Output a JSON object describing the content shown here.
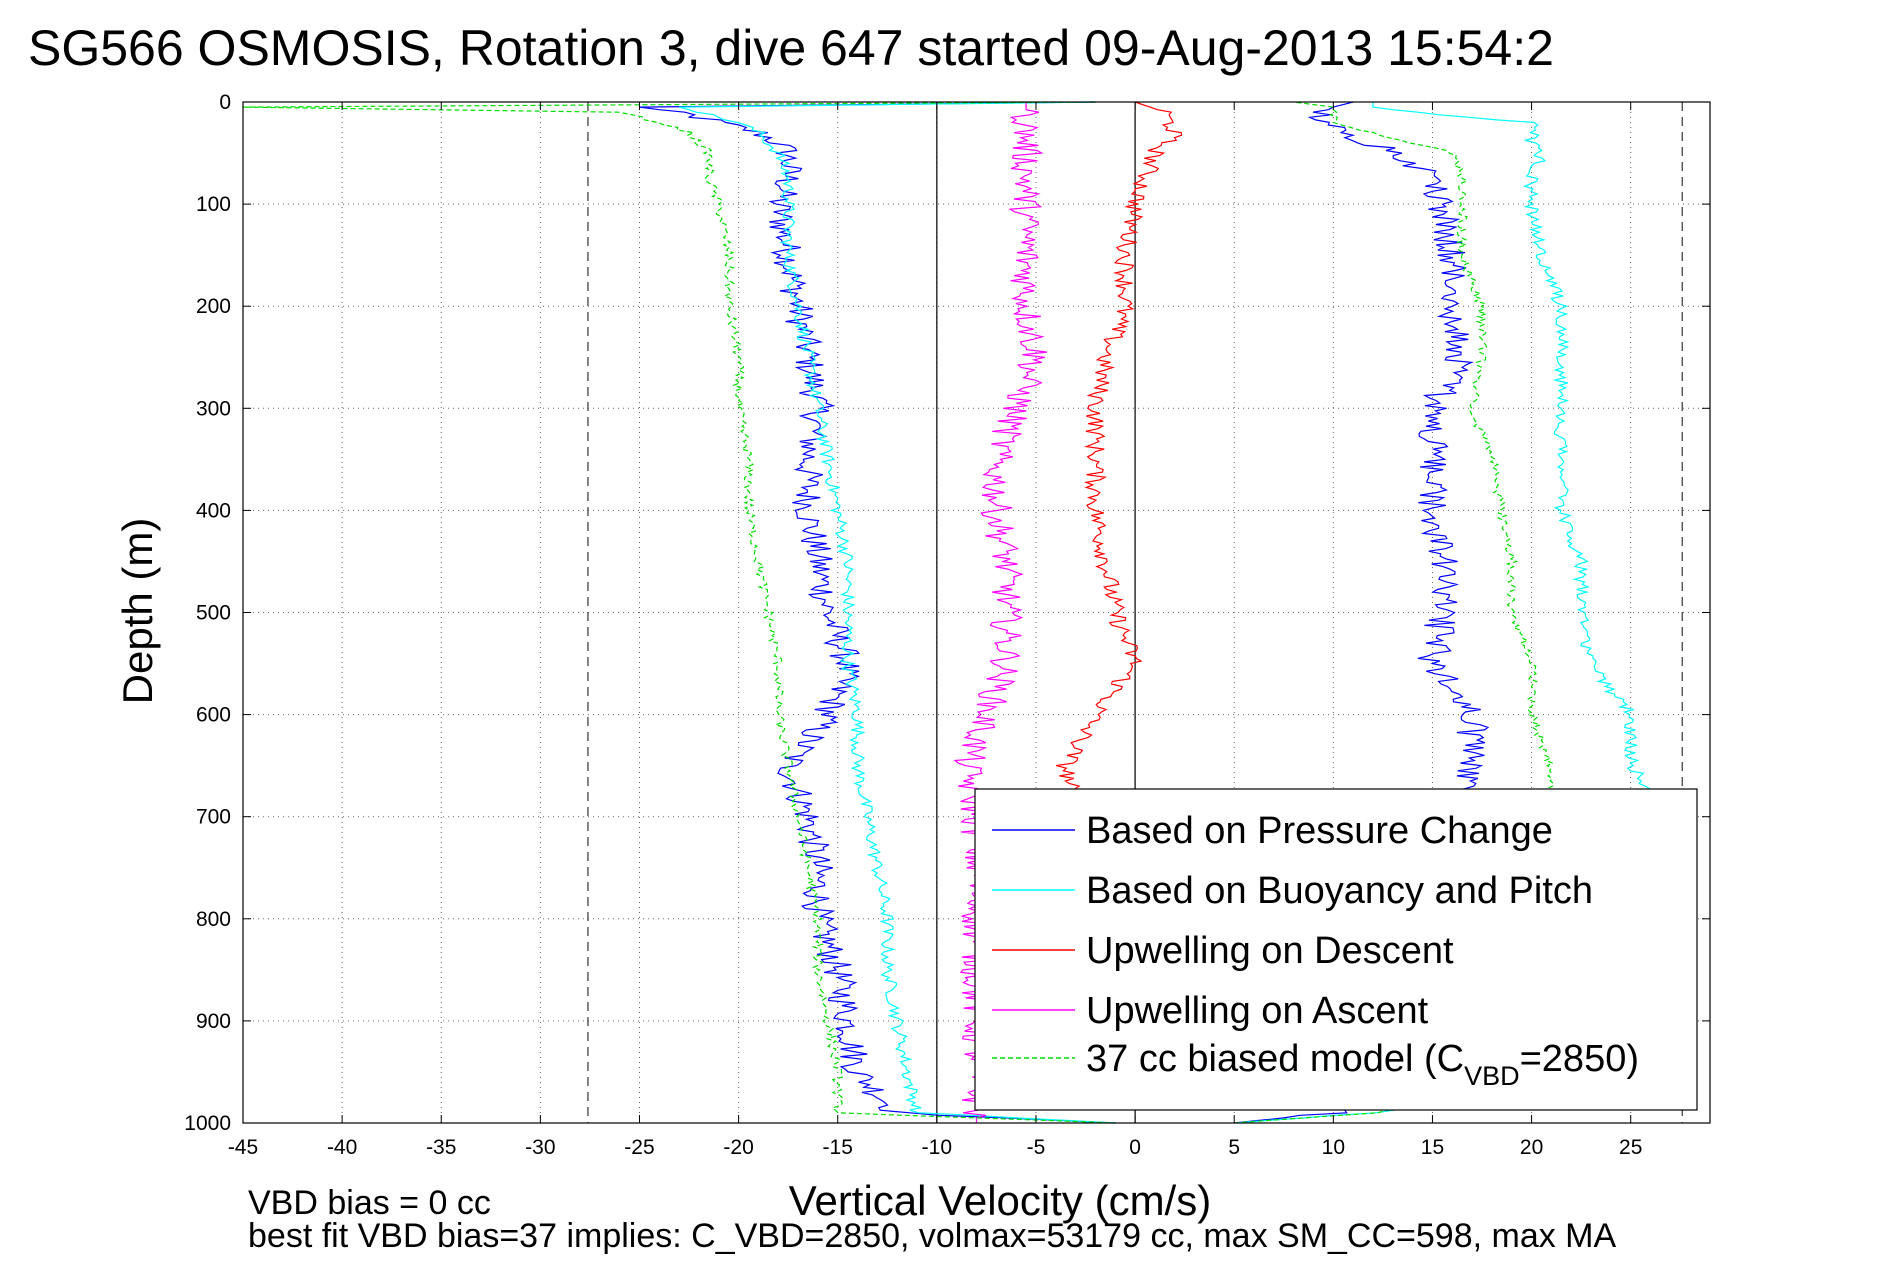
{
  "chart_data": {
    "type": "line",
    "title": "SG566 OSMOSIS, Rotation 3, dive 647 started 09-Aug-2013 15:54:2",
    "xlabel": "Vertical Velocity (cm/s)",
    "ylabel": "Depth (m)",
    "xlim": [
      -45,
      29
    ],
    "ylim": [
      1000,
      0
    ],
    "y_reversed": true,
    "xticks": [
      -45,
      -40,
      -35,
      -30,
      -25,
      -20,
      -15,
      -10,
      -5,
      0,
      5,
      10,
      15,
      20,
      25
    ],
    "yticks": [
      0,
      100,
      200,
      300,
      400,
      500,
      600,
      700,
      800,
      900,
      1000
    ],
    "grid": true,
    "legend_position": "bottom-right",
    "reference_lines": {
      "dashed_x": [
        -27.6,
        27.6
      ],
      "solid_x": [
        -10,
        0
      ]
    },
    "series": [
      {
        "name": "Based on Pressure Change",
        "color": "#0000ff",
        "style": "solid",
        "descent": {
          "depth": [
            0,
            5,
            10,
            20,
            30,
            40,
            50,
            75,
            100,
            150,
            200,
            250,
            300,
            350,
            400,
            450,
            500,
            550,
            600,
            650,
            700,
            750,
            800,
            850,
            900,
            950,
            990,
            1000
          ],
          "v": [
            -2,
            -25,
            -23,
            -21,
            -19,
            -18,
            -17.5,
            -17.5,
            -18,
            -17.5,
            -17,
            -16.5,
            -16,
            -16.5,
            -16.5,
            -16,
            -15.5,
            -14.5,
            -15.5,
            -17.5,
            -16.5,
            -16,
            -16,
            -15,
            -14.5,
            -14,
            -12,
            -1
          ]
        },
        "ascent": {
          "depth": [
            1000,
            990,
            950,
            900,
            850,
            800,
            750,
            700,
            650,
            600,
            550,
            500,
            450,
            400,
            350,
            300,
            250,
            200,
            150,
            100,
            75,
            50,
            40,
            30,
            20,
            10,
            5,
            0
          ],
          "v": [
            5,
            10,
            12,
            12.5,
            13,
            14,
            15,
            16,
            17,
            17,
            15,
            15.5,
            15.5,
            15,
            15,
            15,
            16.5,
            16,
            16,
            15.5,
            15,
            13.5,
            12,
            10.5,
            9.5,
            9.5,
            10,
            11
          ]
        }
      },
      {
        "name": "Based on Buoyancy and Pitch",
        "color": "#00ffff",
        "style": "solid",
        "descent": {
          "depth": [
            0,
            5,
            10,
            20,
            30,
            40,
            50,
            75,
            100,
            150,
            200,
            250,
            300,
            350,
            400,
            450,
            500,
            550,
            600,
            650,
            700,
            750,
            800,
            850,
            900,
            950,
            990,
            1000
          ],
          "v": [
            -2,
            -23,
            -22,
            -20,
            -19,
            -18.5,
            -18,
            -17.5,
            -17.5,
            -17.5,
            -17,
            -16.5,
            -16,
            -15.5,
            -15,
            -14.5,
            -14.5,
            -14.5,
            -14,
            -14,
            -13.5,
            -13,
            -12.5,
            -12.5,
            -12,
            -11.5,
            -11,
            -1
          ]
        },
        "ascent": {
          "depth": [
            1000,
            990,
            950,
            900,
            850,
            800,
            750,
            700,
            650,
            600,
            550,
            500,
            450,
            400,
            350,
            300,
            250,
            200,
            150,
            100,
            75,
            50,
            40,
            30,
            20,
            10,
            5,
            0
          ],
          "v": [
            5,
            12,
            27,
            27,
            27,
            27,
            27,
            27,
            25,
            25,
            23,
            22.5,
            22.5,
            21.5,
            21.5,
            21.5,
            21.5,
            21.5,
            20.5,
            20,
            20,
            20.5,
            20,
            20,
            20,
            14,
            12,
            12
          ]
        }
      },
      {
        "name": "Upwelling on Descent",
        "color": "#ff0000",
        "style": "solid",
        "descent": {
          "depth": [
            0,
            10,
            30,
            50,
            75,
            100,
            150,
            200,
            250,
            300,
            350,
            400,
            450,
            500,
            550,
            600,
            650,
            700,
            750,
            800
          ],
          "v": [
            0,
            1.5,
            2,
            1,
            0.5,
            0,
            -0.5,
            -0.5,
            -1.5,
            -2,
            -2,
            -2,
            -1.5,
            -1,
            0,
            -2,
            -3.5,
            -3,
            -3,
            -3
          ]
        }
      },
      {
        "name": "Upwelling on Ascent",
        "color": "#ff00ff",
        "style": "solid",
        "ascent": {
          "depth": [
            0,
            50,
            100,
            150,
            200,
            250,
            300,
            350,
            400,
            450,
            500,
            550,
            600,
            650,
            700,
            750,
            800,
            850,
            900,
            950,
            1000
          ],
          "v": [
            -5.5,
            -5.5,
            -5.5,
            -5.5,
            -5.5,
            -5,
            -6,
            -7,
            -7,
            -6.5,
            -6.5,
            -6.5,
            -7.5,
            -8.5,
            -8,
            -8,
            -8,
            -8,
            -8,
            -8,
            -8
          ]
        }
      },
      {
        "name": "37 cc biased model (C_VBD=2850)",
        "color": "#00dd00",
        "style": "dashed",
        "descent": {
          "depth": [
            0,
            5,
            10,
            20,
            30,
            40,
            50,
            75,
            100,
            150,
            200,
            250,
            300,
            350,
            400,
            450,
            500,
            550,
            600,
            650,
            700,
            750,
            800,
            850,
            900,
            950,
            990,
            1000
          ],
          "v": [
            -2,
            -45,
            -26,
            -24,
            -22.5,
            -22,
            -21.5,
            -21.5,
            -21,
            -20.5,
            -20.5,
            -20,
            -20,
            -19.5,
            -19.5,
            -19,
            -18.5,
            -18,
            -18,
            -17.5,
            -17,
            -16.5,
            -16,
            -16,
            -15.5,
            -15,
            -15,
            -1
          ]
        },
        "ascent": {
          "depth": [
            1000,
            990,
            950,
            900,
            850,
            800,
            750,
            700,
            650,
            600,
            550,
            500,
            450,
            400,
            350,
            300,
            250,
            200,
            150,
            100,
            75,
            50,
            40,
            30,
            20,
            10,
            5,
            0
          ],
          "v": [
            5,
            12,
            20,
            20,
            20,
            20,
            21,
            21,
            21,
            20,
            20,
            19,
            19,
            18.5,
            18,
            17,
            17.5,
            17.5,
            16.5,
            16.5,
            16.5,
            16,
            14,
            12,
            10,
            10,
            10,
            8
          ]
        }
      }
    ],
    "legend": {
      "entries": [
        "Based on Pressure Change",
        "Based on Buoyancy and Pitch",
        "Upwelling on Descent",
        "Upwelling on Ascent",
        "37 cc biased model (C"
      ],
      "last_entry_subscript": "VBD",
      "last_entry_suffix": "=2850)"
    }
  },
  "footer": {
    "line1": "VBD bias = 0 cc",
    "line2": "best fit VBD bias=37 implies: C_VBD=2850, volmax=53179 cc, max SM_CC=598, max MA"
  }
}
